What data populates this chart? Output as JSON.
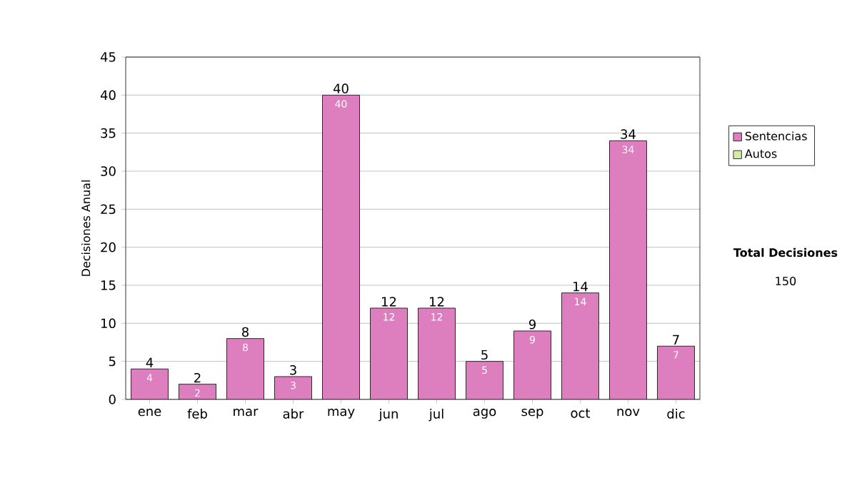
{
  "chart_data": {
    "type": "bar",
    "ylabel": "Decisiones Anual",
    "categories": [
      "ene",
      "feb",
      "mar",
      "abr",
      "may",
      "jun",
      "jul",
      "ago",
      "sep",
      "oct",
      "nov",
      "dic"
    ],
    "series": [
      {
        "name": "Sentencias",
        "color": "#dd7fbf",
        "values": [
          4,
          2,
          8,
          3,
          40,
          12,
          12,
          5,
          9,
          14,
          34,
          7
        ],
        "value_labels": [
          "4",
          "2",
          "8",
          "3",
          "40",
          "12",
          "12",
          "5",
          "9",
          "14",
          "34",
          "7"
        ]
      },
      {
        "name": "Autos",
        "color": "#d6eba2",
        "values": [
          null,
          null,
          null,
          null,
          null,
          null,
          null,
          null,
          null,
          null,
          null,
          null
        ]
      }
    ],
    "ylim": [
      0,
      45
    ],
    "yticks": [
      0,
      5,
      10,
      15,
      20,
      25,
      30,
      35,
      40,
      45
    ],
    "grid": "y",
    "legend": "right",
    "data_labels": true,
    "annotations": [
      "**Total Decisiones**",
      "150"
    ]
  }
}
